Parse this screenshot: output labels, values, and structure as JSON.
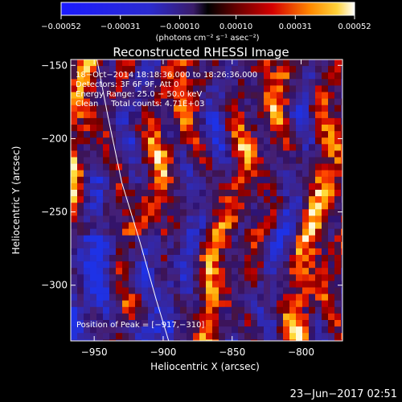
{
  "chart_data": {
    "type": "heatmap",
    "title": "Reconstructed RHESSI Image",
    "xlabel": "Heliocentric X (arcsec)",
    "ylabel": "Heliocentric Y (arcsec)",
    "xlim": [
      -967,
      -770
    ],
    "ylim": [
      -338,
      -146
    ],
    "x_ticks": [
      {
        "value": -950,
        "label": "−950"
      },
      {
        "value": -900,
        "label": "−900"
      },
      {
        "value": -850,
        "label": "−850"
      },
      {
        "value": -800,
        "label": "−800"
      }
    ],
    "y_ticks": [
      {
        "value": -150,
        "label": "−150"
      },
      {
        "value": -200,
        "label": "−200"
      },
      {
        "value": -250,
        "label": "−250"
      },
      {
        "value": -300,
        "label": "−300"
      }
    ],
    "colorbar": {
      "min": -0.00052,
      "max": 0.00052,
      "unit_label": "(photons cm⁻² s⁻¹ asec⁻²)",
      "ticks": [
        {
          "value": -0.00052,
          "label": "−0.00052"
        },
        {
          "value": -0.00031,
          "label": "−0.00031"
        },
        {
          "value": -0.0001,
          "label": "−0.00010"
        },
        {
          "value": 0.0001,
          "label": "0.00010"
        },
        {
          "value": 0.00031,
          "label": "0.00031"
        },
        {
          "value": 0.00052,
          "label": "0.00052"
        }
      ]
    },
    "annotations": [
      "18−Oct−2014 18:18:36.000 to 18:26:36.000",
      "Detectors: 3F 6F 9F, Att 0",
      "Energy Range: 25.0 − 50.0 keV",
      "Clean     Total counts: 4.71E+03"
    ],
    "peak_label": "Position of Peak = [−917,−310]",
    "peak": {
      "x": -917,
      "y": -310
    },
    "limb_curve": [
      [
        -948,
        -146
      ],
      [
        -940,
        -185
      ],
      [
        -930,
        -230
      ],
      [
        -917,
        -270
      ],
      [
        -905,
        -310
      ],
      [
        -896,
        -338
      ]
    ],
    "grid": false
  },
  "footer": {
    "timestamp": "23−Jun−2017 02:51"
  },
  "colors": {
    "background": "#000000",
    "text": "#ffffff",
    "limb": "#ffffff"
  }
}
